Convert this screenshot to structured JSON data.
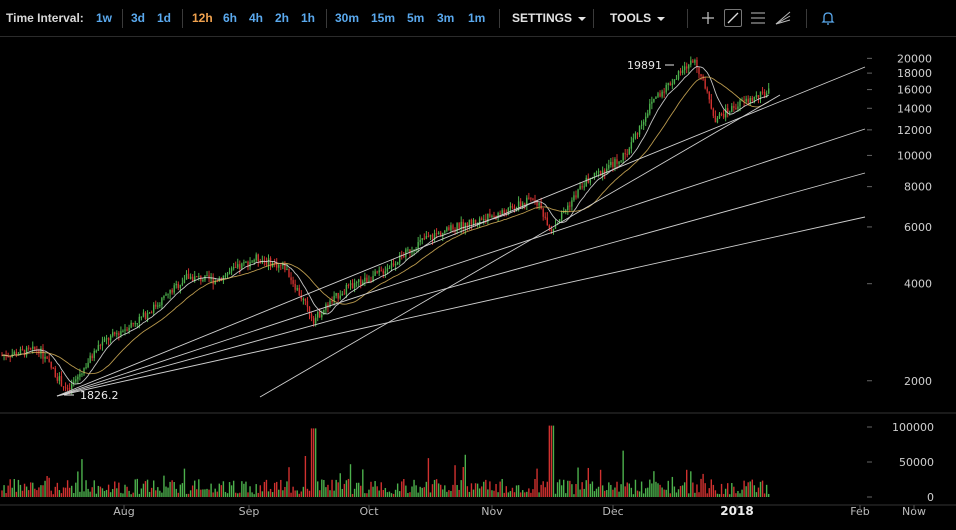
{
  "toolbar": {
    "time_interval_label": "Time Interval:",
    "intervals": [
      "1w",
      "3d",
      "1d",
      "12h",
      "6h",
      "4h",
      "2h",
      "1h",
      "30m",
      "15m",
      "5m",
      "3m",
      "1m"
    ],
    "active_interval": "12h",
    "settings_label": "SETTINGS",
    "tools_label": "TOOLS",
    "tool_icons": [
      "crosshair-icon",
      "trendline-icon",
      "horizontal-lines-icon",
      "fan-icon",
      "alert-bell-icon"
    ]
  },
  "chart_data": {
    "type": "candlestick",
    "scale": "log",
    "price_axis_labels": [
      "20000",
      "18000",
      "16000",
      "14000",
      "12000",
      "10000",
      "8000",
      "6000",
      "4000",
      "2000"
    ],
    "volume_axis_labels": [
      "100000",
      "50000",
      "0"
    ],
    "time_axis_labels": [
      "Aug",
      "Sep",
      "Oct",
      "Nov",
      "Dec",
      "2018",
      "Feb",
      "Now"
    ],
    "price_range": [
      1600,
      22000
    ],
    "volume_range": [
      0,
      110000
    ],
    "annotations": [
      {
        "text": "19891",
        "type": "high"
      },
      {
        "text": "1826.2",
        "type": "low"
      }
    ],
    "price_key_points": [
      {
        "date": "Jul 1",
        "price": 2400
      },
      {
        "date": "Jul 10",
        "price": 2500
      },
      {
        "date": "Jul 17",
        "price": 1850
      },
      {
        "date": "Jul 25",
        "price": 2600
      },
      {
        "date": "Aug 5",
        "price": 3200
      },
      {
        "date": "Aug 15",
        "price": 4200
      },
      {
        "date": "Aug 22",
        "price": 4100
      },
      {
        "date": "Sep 1",
        "price": 4800
      },
      {
        "date": "Sep 8",
        "price": 4500
      },
      {
        "date": "Sep 15",
        "price": 3100
      },
      {
        "date": "Sep 22",
        "price": 3800
      },
      {
        "date": "Oct 1",
        "price": 4300
      },
      {
        "date": "Oct 12",
        "price": 5500
      },
      {
        "date": "Oct 20",
        "price": 6000
      },
      {
        "date": "Nov 1",
        "price": 6700
      },
      {
        "date": "Nov 8",
        "price": 7400
      },
      {
        "date": "Nov 12",
        "price": 5900
      },
      {
        "date": "Nov 20",
        "price": 8200
      },
      {
        "date": "Nov 30",
        "price": 10000
      },
      {
        "date": "Dec 7",
        "price": 15000
      },
      {
        "date": "Dec 17",
        "price": 19891
      },
      {
        "date": "Dec 22",
        "price": 13000
      },
      {
        "date": "Dec 28",
        "price": 14500
      },
      {
        "date": "Jan 3",
        "price": 15500
      },
      {
        "date": "Jan 7",
        "price": 16500
      },
      {
        "date": "Jan 10",
        "price": 14500
      }
    ],
    "trendlines": 4
  }
}
